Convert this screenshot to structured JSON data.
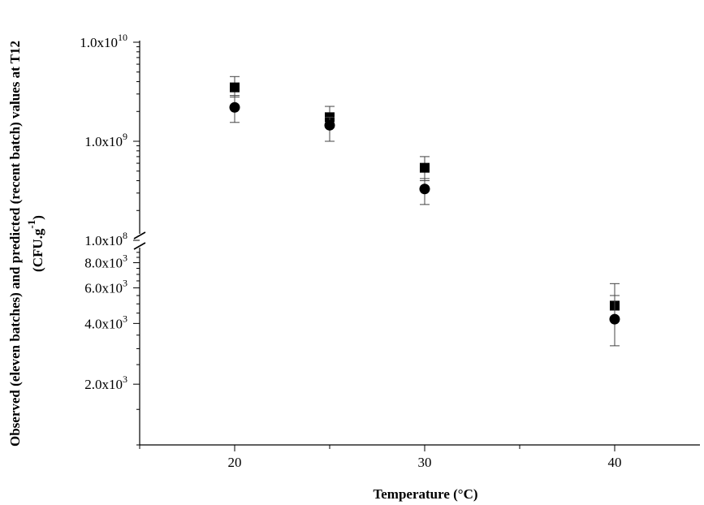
{
  "chart_data": {
    "type": "scatter",
    "xlabel": "Temperature (°C)",
    "ylabel": "Observed (eleven batches) and predicted (recent batch) values at T12",
    "ylabel_unit": "(CFU.g",
    "ylabel_unit_sup": "-1",
    "ylabel_unit_end": ")",
    "xlim": [
      15,
      45
    ],
    "x_ticks": [
      20,
      30,
      40
    ],
    "x_ticks_labels": [
      "20",
      "30",
      "40"
    ],
    "y_scale": "log with axis break",
    "y_upper_segment": {
      "range": [
        100000000,
        10000000000
      ],
      "tick_labels": [
        {
          "value": 10000000000,
          "mant": "1.0x10",
          "exp": "10"
        },
        {
          "value": 1000000000,
          "mant": "1.0x10",
          "exp": "9"
        },
        {
          "value": 100000000,
          "mant": "1.0x10",
          "exp": "8"
        }
      ]
    },
    "y_lower_segment": {
      "range": [
        1000,
        9500
      ],
      "tick_labels": [
        {
          "value": 8000,
          "mant": "8.0x10",
          "exp": "3"
        },
        {
          "value": 6000,
          "mant": "6.0x10",
          "exp": "3"
        },
        {
          "value": 4000,
          "mant": "4.0x10",
          "exp": "3"
        },
        {
          "value": 2000,
          "mant": "2.0x10",
          "exp": "3"
        }
      ]
    },
    "series": [
      {
        "marker": "square",
        "points": [
          {
            "x": 20,
            "y": 3500000000,
            "err_low": 2800000000,
            "err_high": 4500000000
          },
          {
            "x": 25,
            "y": 1750000000,
            "err_low": 1400000000,
            "err_high": 2250000000
          },
          {
            "x": 30,
            "y": 540000000,
            "err_low": 400000000,
            "err_high": 700000000
          },
          {
            "x": 40,
            "y": 4900,
            "err_low": 4300,
            "err_high": 6300
          }
        ]
      },
      {
        "marker": "circle",
        "points": [
          {
            "x": 20,
            "y": 2200000000,
            "err_low": 1550000000,
            "err_high": 2900000000
          },
          {
            "x": 25,
            "y": 1450000000,
            "err_low": 1000000000,
            "err_high": 1750000000
          },
          {
            "x": 30,
            "y": 330000000,
            "err_low": 230000000,
            "err_high": 420000000
          },
          {
            "x": 40,
            "y": 4200,
            "err_low": 3100,
            "err_high": 5500
          }
        ]
      }
    ],
    "grid": false,
    "legend": "none"
  }
}
